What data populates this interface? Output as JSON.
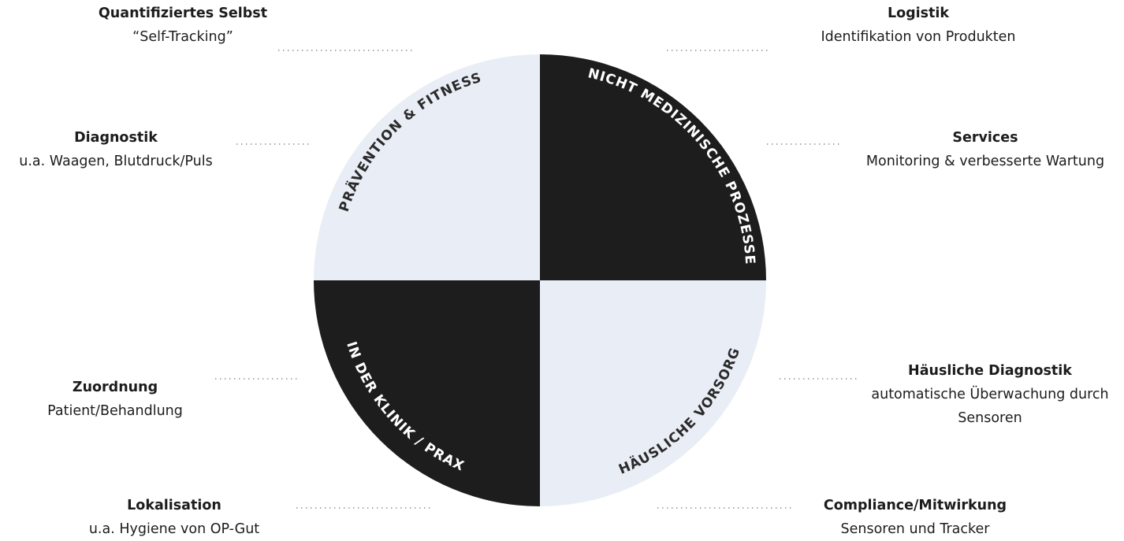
{
  "quadrants": {
    "top_left": {
      "label": "PRÄVENTION & FITNESS",
      "color": "#e9edf5"
    },
    "top_right": {
      "label": "NICHT MEDIZINISCHE PROZESSE",
      "color": "#1d1d1d"
    },
    "bottom_left": {
      "label": "IN DER KLINIK / PRAXIS",
      "color": "#1d1d1d"
    },
    "bottom_right": {
      "label": "HÄUSLICHE VORSORGE",
      "color": "#e9edf5"
    }
  },
  "annotations": {
    "quantifiziertes": {
      "title": "Quantifiziertes Selbst",
      "desc": "“Self-Tracking”"
    },
    "diagnostik": {
      "title": "Diagnostik",
      "desc": "u.a. Waagen, Blutdruck/Puls"
    },
    "zuordnung": {
      "title": "Zuordnung",
      "desc": "Patient/Behandlung"
    },
    "lokalisation": {
      "title": "Lokalisation",
      "desc": "u.a. Hygiene von OP-Gut"
    },
    "logistik": {
      "title": "Logistik",
      "desc": "Identifikation von Produkten"
    },
    "services": {
      "title": "Services",
      "desc": "Monitoring & verbesserte Wartung"
    },
    "haeusliche_diagnostik": {
      "title": "Häusliche Diagnostik",
      "desc": "automatische Überwachung durch Sensoren"
    },
    "compliance": {
      "title": "Compliance/Mitwirkung",
      "desc": "Sensoren und Tracker"
    }
  }
}
